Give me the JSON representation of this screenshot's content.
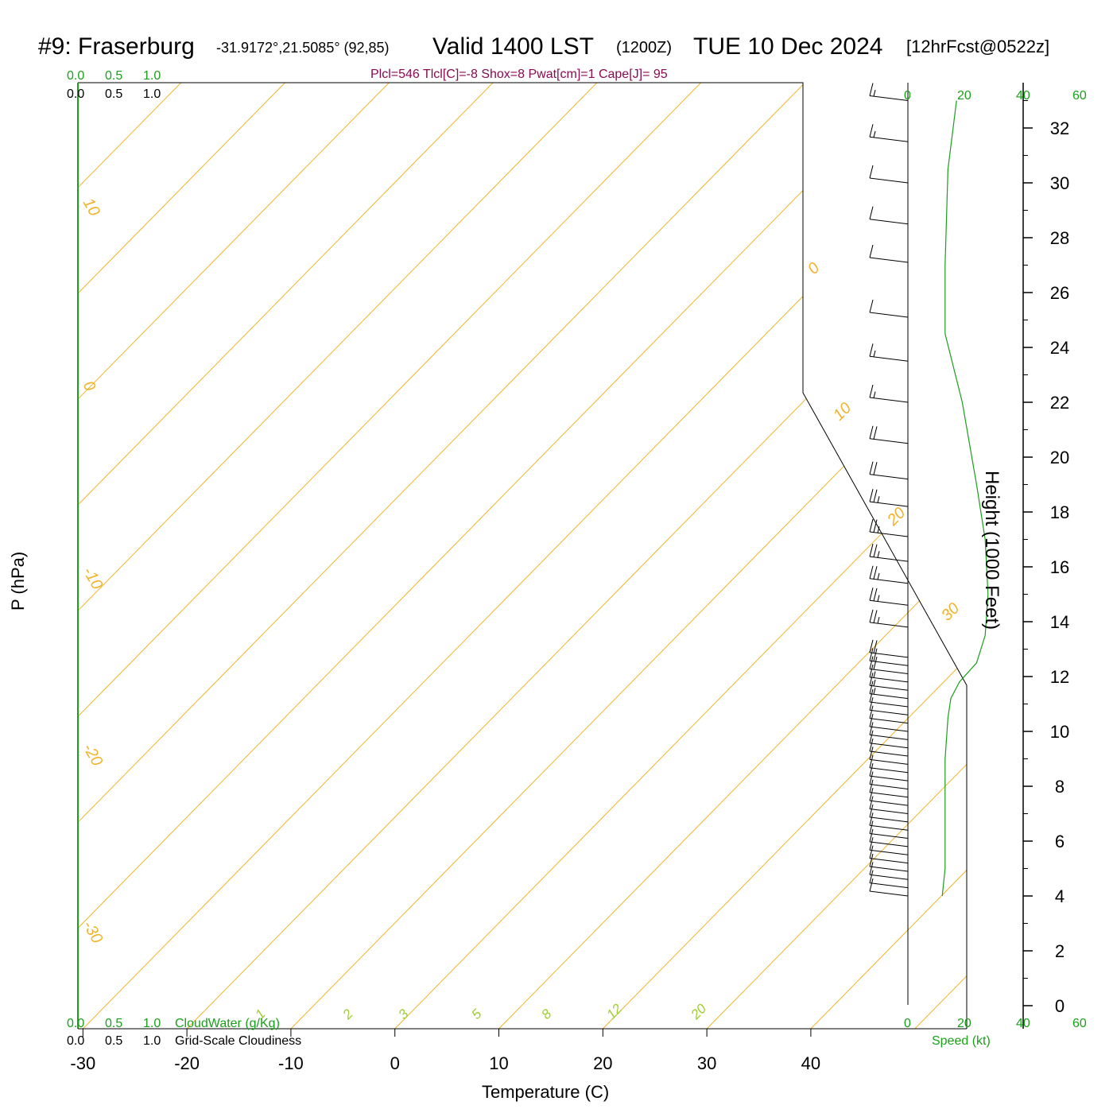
{
  "header": {
    "station": "#9: Fraserburg",
    "coords": "-31.9172°,21.5085° (92,85)",
    "valid": "Valid 1400 LST",
    "utc": "(1200Z)",
    "date": "TUE 10 Dec 2024",
    "forecast": "[12hrFcst@0522z]",
    "indices": "Plcl=546 Tlcl[C]=-8 Shox=8 Pwat[cm]=1 Cape[J]= 95"
  },
  "colors": {
    "temperature": "#ee0000",
    "dewpoint": "#1e6ee6",
    "parcel": "#600060",
    "isotherm": "#f2b32a",
    "dry_adiabat": "#f2b32a",
    "moist_adiabat": "#9ccf2c",
    "mixing_ratio": "#9ccf2c",
    "axis_green": "#1aa01a",
    "wind_speed": "#1aa01a"
  },
  "labels": {
    "pressure_axis": "P (hPa)",
    "temperature_axis": "Temperature (C)",
    "height_axis": "Height (1000 Feet)",
    "cloudwater": "CloudWater (g/Kg)",
    "cloudiness": "Grid-Scale Cloudiness",
    "speed": "Speed (kt)",
    "scale_top_green": [
      "0.0",
      "0.5",
      "1.0"
    ],
    "scale_top_black": [
      "0.0",
      "0.5",
      "1.0"
    ],
    "scale_bottom_green": [
      "0.0",
      "0.5",
      "1.0"
    ],
    "scale_bottom_black": [
      "0.0",
      "0.5",
      "1.0"
    ],
    "speed_ticks": [
      "0",
      "20",
      "40",
      "60"
    ]
  },
  "chart_data": {
    "type": "line",
    "subtype": "skew-T log-P sounding",
    "pressure_levels": [
      "250",
      "300",
      "400",
      "500",
      "700",
      "850",
      "1000"
    ],
    "temperature_ticks": [
      "-30",
      "-20",
      "-10",
      "0",
      "10",
      "20",
      "30",
      "40"
    ],
    "height_ticks": [
      "32",
      "30",
      "28",
      "26",
      "24",
      "22",
      "20",
      "18",
      "16",
      "14",
      "12",
      "10",
      "8",
      "6",
      "4",
      "2",
      "0"
    ],
    "isotherm_labels": [
      "10",
      "0",
      "-10",
      "-20",
      "-30",
      "0",
      "10",
      "20",
      "30"
    ],
    "mixing_ratio_labels": [
      "1",
      "2",
      "3",
      "5",
      "8",
      "12",
      "20"
    ],
    "temperature_profile": [
      {
        "p": 868,
        "t": 38.0
      },
      {
        "p": 866,
        "t": 37.0
      },
      {
        "p": 862,
        "t": 36.3
      },
      {
        "p": 850,
        "t": 35.6
      },
      {
        "p": 800,
        "t": 31.6
      },
      {
        "p": 750,
        "t": 27.1
      },
      {
        "p": 700,
        "t": 22.2
      },
      {
        "p": 685,
        "t": 20.8
      },
      {
        "p": 670,
        "t": 20.5
      },
      {
        "p": 660,
        "t": 21.6
      },
      {
        "p": 648,
        "t": 21.5
      },
      {
        "p": 600,
        "t": 17.4
      },
      {
        "p": 550,
        "t": 12.8
      },
      {
        "p": 500,
        "t": 7.6
      },
      {
        "p": 450,
        "t": 2.0
      },
      {
        "p": 420,
        "t": -2.0
      },
      {
        "p": 380,
        "t": -7.8
      },
      {
        "p": 350,
        "t": -12.8
      },
      {
        "p": 300,
        "t": -21.6
      },
      {
        "p": 275,
        "t": -27.6
      },
      {
        "p": 254,
        "t": -33.2
      }
    ],
    "dewpoint_profile": [
      {
        "p": 868,
        "t": 3.0
      },
      {
        "p": 866,
        "t": 2.5
      },
      {
        "p": 862,
        "t": 2.0
      },
      {
        "p": 850,
        "t": 1.6
      },
      {
        "p": 800,
        "t": 1.2
      },
      {
        "p": 750,
        "t": 0.4
      },
      {
        "p": 700,
        "t": -2.4
      },
      {
        "p": 685,
        "t": -3.4
      },
      {
        "p": 670,
        "t": -5.8
      },
      {
        "p": 655,
        "t": -22.0
      },
      {
        "p": 648,
        "t": -26.5
      },
      {
        "p": 620,
        "t": -26.0
      },
      {
        "p": 590,
        "t": -27.5
      },
      {
        "p": 560,
        "t": -33.5
      },
      {
        "p": 530,
        "t": -40.5
      },
      {
        "p": 492,
        "t": -46.0
      },
      {
        "p": 450,
        "t": -45.5
      },
      {
        "p": 415,
        "t": -43.5
      },
      {
        "p": 380,
        "t": -47.0
      },
      {
        "p": 350,
        "t": -53.5
      },
      {
        "p": 323,
        "t": -60.5
      },
      {
        "p": 300,
        "t": -67.0
      },
      {
        "p": 275,
        "t": -70.0
      },
      {
        "p": 260,
        "t": -71.5
      },
      {
        "p": 253,
        "t": -73.5
      }
    ],
    "parcel_profile": [
      {
        "p": 862,
        "t": 37.0
      },
      {
        "p": 800,
        "t": 33.5
      },
      {
        "p": 750,
        "t": 29.0
      },
      {
        "p": 690,
        "t": 23.5
      },
      {
        "p": 675,
        "t": 21.0
      }
    ],
    "surface_temperature": {
      "p": 868,
      "t": 38.7
    },
    "surface_dewpoint": {
      "p": 868,
      "t": 9.5
    },
    "wind_speed_profile": [
      {
        "h": 4.0,
        "spd": 12
      },
      {
        "h": 5.0,
        "spd": 13
      },
      {
        "h": 7.0,
        "spd": 13
      },
      {
        "h": 9.0,
        "spd": 13
      },
      {
        "h": 10.5,
        "spd": 14
      },
      {
        "h": 11.2,
        "spd": 15
      },
      {
        "h": 11.8,
        "spd": 18
      },
      {
        "h": 12.5,
        "spd": 24
      },
      {
        "h": 13.5,
        "spd": 27
      },
      {
        "h": 15.0,
        "spd": 28
      },
      {
        "h": 17.0,
        "spd": 27
      },
      {
        "h": 19.0,
        "spd": 24
      },
      {
        "h": 22.0,
        "spd": 19
      },
      {
        "h": 24.5,
        "spd": 13
      },
      {
        "h": 27.0,
        "spd": 13
      },
      {
        "h": 30.5,
        "spd": 14
      },
      {
        "h": 33.0,
        "spd": 17
      }
    ]
  }
}
